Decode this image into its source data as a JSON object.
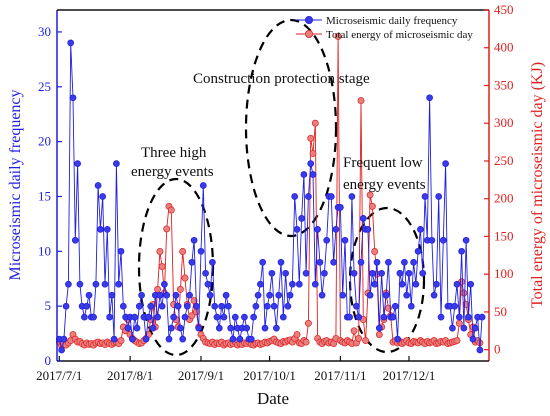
{
  "chart_data": {
    "type": "line",
    "xlabel": "Date",
    "ylabel_left": "Microseismic daily frequency",
    "ylabel_right": "Total energy of microseismic day (KJ)",
    "x_ticks": [
      "2017/7/1",
      "2017/8/1",
      "2017/9/1",
      "2017/10/1",
      "2017/11/1",
      "2017/12/1"
    ],
    "x_tick_dates": [
      "2017-07-01",
      "2017-08-01",
      "2017-09-01",
      "2017-10-01",
      "2017-11-01",
      "2017-12-01"
    ],
    "xlim": [
      "2017-06-30",
      "2018-01-05"
    ],
    "ylim_left": [
      0,
      32
    ],
    "yticks_left": [
      0,
      5,
      10,
      15,
      20,
      25,
      30
    ],
    "ylim_right": [
      -15,
      450
    ],
    "yticks_right": [
      0,
      50,
      100,
      150,
      200,
      250,
      300,
      350,
      400,
      450
    ],
    "grid": false,
    "legend_position": "top-right",
    "start_date": "2017-07-01",
    "series": [
      {
        "name": "Microseismic daily frequency",
        "axis": "left",
        "color": "#1f1fe0",
        "marker": "circle",
        "values": [
          2,
          1,
          2,
          5,
          7,
          29,
          24,
          11,
          18,
          7,
          5,
          4,
          5,
          6,
          4,
          4,
          7,
          16,
          12,
          15,
          7,
          12,
          4,
          6,
          2,
          18,
          7,
          10,
          5,
          4,
          3,
          4,
          2,
          4,
          3,
          5,
          6,
          4,
          2,
          4,
          5,
          3,
          6,
          4,
          6,
          5,
          7,
          6,
          2,
          3,
          4,
          6,
          5,
          3,
          2,
          4,
          5,
          6,
          9,
          11,
          5,
          3,
          10,
          16,
          8,
          7,
          6,
          9,
          5,
          4,
          3,
          5,
          4,
          6,
          5,
          3,
          2,
          4,
          3,
          2,
          3,
          4,
          3,
          2,
          2,
          4,
          5,
          6,
          7,
          9,
          3,
          5,
          6,
          8,
          5,
          3,
          6,
          9,
          4,
          8,
          5,
          6,
          7,
          15,
          12,
          7,
          13,
          17,
          8,
          15,
          18,
          17,
          7,
          12,
          9,
          6,
          8,
          11,
          15,
          15,
          9,
          12,
          14,
          14,
          6,
          11,
          4,
          4,
          15,
          8,
          5,
          4,
          9,
          13,
          12,
          12,
          6,
          8,
          7,
          9,
          3,
          8,
          4,
          6,
          9,
          4,
          4,
          5,
          2,
          8,
          7,
          9,
          6,
          8,
          5,
          9,
          7,
          10,
          12,
          8,
          15,
          11,
          24,
          11,
          6,
          7,
          15,
          4,
          11,
          18,
          5,
          5,
          3,
          5,
          7,
          4,
          10,
          3,
          11,
          4,
          7,
          2,
          3,
          4,
          1,
          4
        ]
      },
      {
        "name": "Total energy of microseismic day",
        "axis": "right",
        "color": "#e01f1f",
        "marker": "circle",
        "values": [
          10,
          5,
          8,
          6,
          9,
          12,
          20,
          14,
          10,
          11,
          8,
          6,
          9,
          7,
          8,
          6,
          9,
          10,
          8,
          9,
          7,
          10,
          8,
          7,
          9,
          10,
          8,
          12,
          30,
          25,
          40,
          20,
          15,
          12,
          10,
          8,
          9,
          12,
          15,
          20,
          40,
          60,
          30,
          80,
          130,
          110,
          75,
          160,
          190,
          185,
          60,
          40,
          30,
          80,
          130,
          95,
          60,
          40,
          45,
          65,
          50,
          30,
          20,
          15,
          10,
          9,
          8,
          10,
          7,
          9,
          8,
          10,
          6,
          8,
          9,
          7,
          8,
          10,
          6,
          8,
          7,
          9,
          8,
          10,
          7,
          6,
          8,
          9,
          7,
          8,
          10,
          9,
          11,
          12,
          14,
          10,
          9,
          8,
          11,
          10,
          12,
          13,
          10,
          15,
          20,
          9,
          8,
          12,
          10,
          35,
          280,
          260,
          300,
          15,
          10,
          8,
          11,
          12,
          9,
          10,
          8,
          15,
          415,
          12,
          10,
          9,
          12,
          10,
          8,
          25,
          9,
          15,
          330,
          40,
          12,
          75,
          205,
          190,
          130,
          100,
          20,
          30,
          40,
          75,
          55,
          45,
          10,
          12,
          9,
          11,
          8,
          10,
          12,
          9,
          8,
          11,
          10,
          9,
          12,
          10,
          8,
          11,
          9,
          10,
          12,
          8,
          9,
          11,
          10,
          12,
          8,
          9,
          10,
          11,
          12,
          35,
          90,
          75,
          60,
          40,
          20,
          30,
          10,
          12,
          9
        ]
      }
    ],
    "annotations": [
      {
        "text_lines": [
          "Construction protection stage"
        ]
      },
      {
        "text_lines": [
          "Three high",
          "energy events"
        ]
      },
      {
        "text_lines": [
          "Frequent low",
          "energy events"
        ]
      }
    ]
  }
}
